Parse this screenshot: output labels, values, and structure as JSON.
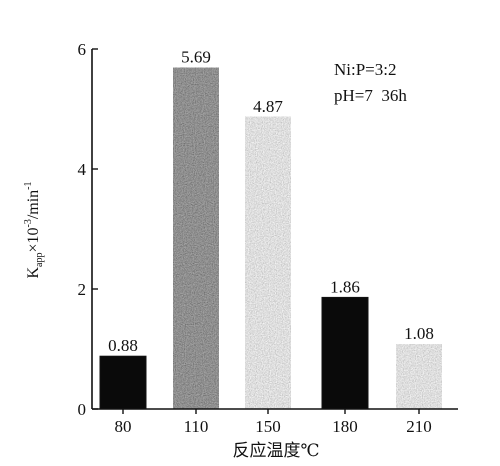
{
  "chart_data": {
    "type": "bar",
    "categories": [
      "80",
      "110",
      "150",
      "180",
      "210"
    ],
    "values": [
      0.88,
      5.69,
      4.87,
      1.86,
      1.08
    ],
    "value_labels": [
      "0.88",
      "5.69",
      "4.87",
      "1.86",
      "1.08"
    ],
    "bar_styles": [
      "solid-black",
      "dark-grainy",
      "light-grainy",
      "solid-black",
      "light-grainy"
    ],
    "xlabel": "反应温度℃",
    "ylabel": "K_app×10⁻³/min⁻¹",
    "ylabel_parts": {
      "main": "K",
      "sub": "app",
      "times": "×10",
      "exp": "-3",
      "unit": "/min",
      "unit_exp": "-1"
    },
    "yticks": [
      0,
      2,
      4,
      6
    ],
    "ylim": [
      0,
      6
    ],
    "annotations": [
      "Ni:P=3:2",
      "pH=7  36h"
    ],
    "grid": false,
    "legend": "none",
    "colors": {
      "bar_black": "#0a0a0a",
      "bar_dark": "#2a2a2a",
      "bar_light": "#b5b5b5",
      "axis": "#111111"
    }
  }
}
